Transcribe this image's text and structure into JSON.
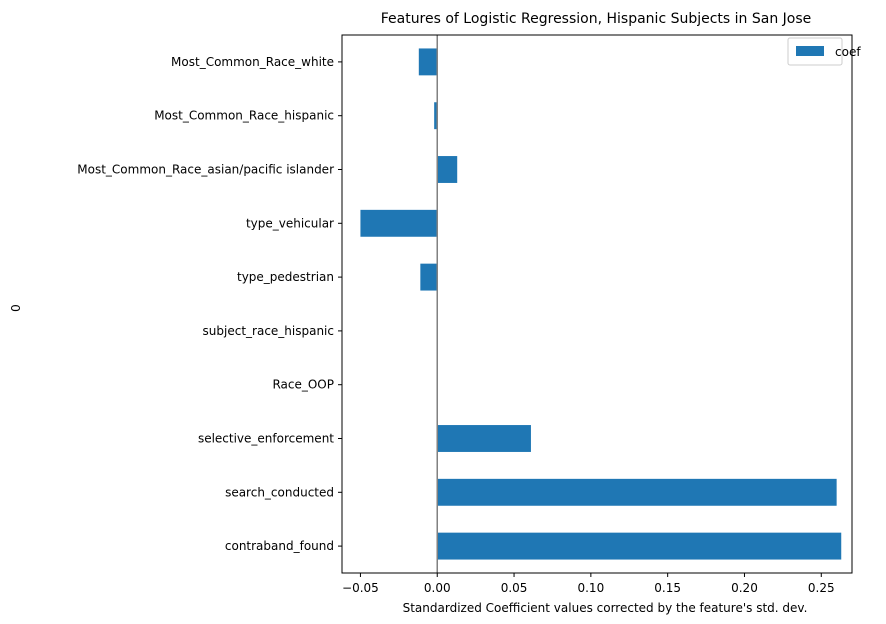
{
  "chart_data": {
    "type": "bar",
    "orientation": "horizontal",
    "title": "Features of Logistic Regression, Hispanic Subjects in San Jose",
    "xlabel": "Standardized Coefficient values corrected by the feature's std. dev.",
    "ylabel": "0",
    "xlim": [
      -0.062,
      0.27
    ],
    "xticks": [
      -0.05,
      0.0,
      0.05,
      0.1,
      0.15,
      0.2,
      0.25
    ],
    "xtick_labels": [
      "−0.05",
      "0.00",
      "0.05",
      "0.10",
      "0.15",
      "0.20",
      "0.25"
    ],
    "categories": [
      "contraband_found",
      "search_conducted",
      "selective_enforcement",
      "Race_OOP",
      "subject_race_hispanic",
      "type_pedestrian",
      "type_vehicular",
      "Most_Common_Race_asian/pacific islander",
      "Most_Common_Race_hispanic",
      "Most_Common_Race_white"
    ],
    "series": [
      {
        "name": "coef",
        "color": "#1f77b4",
        "values": [
          0.263,
          0.26,
          0.061,
          0.0,
          0.0,
          -0.011,
          -0.05,
          0.013,
          -0.002,
          -0.012
        ]
      }
    ],
    "reference_line": {
      "x": 0,
      "color": "#808080"
    },
    "legend": {
      "position": "top-right"
    },
    "grid": false
  }
}
